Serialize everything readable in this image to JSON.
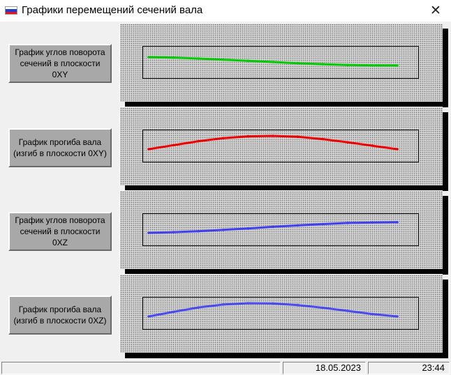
{
  "window": {
    "title": "Графики перемещений сечений вала",
    "flag_colors": [
      "#ffffff",
      "#1c3fd1",
      "#e3131b"
    ]
  },
  "buttons": [
    {
      "label": "График углов поворота сечений в плоскости 0XY"
    },
    {
      "label": "График прогиба вала (изгиб в плоскости 0XY)"
    },
    {
      "label": "График углов поворота сечений в плоскости 0XZ"
    },
    {
      "label": "График прогиба вала (изгиб в плоскости 0XZ)"
    }
  ],
  "chart_data": [
    {
      "type": "line",
      "color": "#00cc00",
      "series": [
        {
          "x": [
            0,
            1,
            2,
            3,
            4,
            5,
            6,
            7,
            8,
            9,
            10
          ],
          "values": [
            0.0,
            -0.05,
            -0.14,
            -0.26,
            -0.38,
            -0.5,
            -0.62,
            -0.72,
            -0.8,
            -0.84,
            -0.85
          ]
        }
      ]
    },
    {
      "type": "line",
      "color": "#ee0000",
      "series": [
        {
          "x": [
            0,
            1,
            2,
            3,
            4,
            5,
            6,
            7,
            8,
            9,
            10
          ],
          "values": [
            0.0,
            0.3,
            0.6,
            0.83,
            0.97,
            1.0,
            0.93,
            0.76,
            0.52,
            0.26,
            0.0
          ]
        }
      ]
    },
    {
      "type": "line",
      "color": "#4040ee",
      "series": [
        {
          "x": [
            0,
            1,
            2,
            3,
            4,
            5,
            6,
            7,
            8,
            9,
            10
          ],
          "values": [
            0.0,
            0.05,
            0.12,
            0.22,
            0.33,
            0.45,
            0.56,
            0.66,
            0.74,
            0.78,
            0.8
          ]
        }
      ]
    },
    {
      "type": "line",
      "color": "#4a4aee",
      "series": [
        {
          "x": [
            0,
            1,
            2,
            3,
            4,
            5,
            6,
            7,
            8,
            9,
            10
          ],
          "values": [
            0.0,
            0.35,
            0.68,
            0.9,
            1.0,
            0.98,
            0.86,
            0.66,
            0.42,
            0.18,
            0.0
          ]
        }
      ]
    }
  ],
  "status": {
    "date": "18.05.2023",
    "time": "23:44"
  }
}
